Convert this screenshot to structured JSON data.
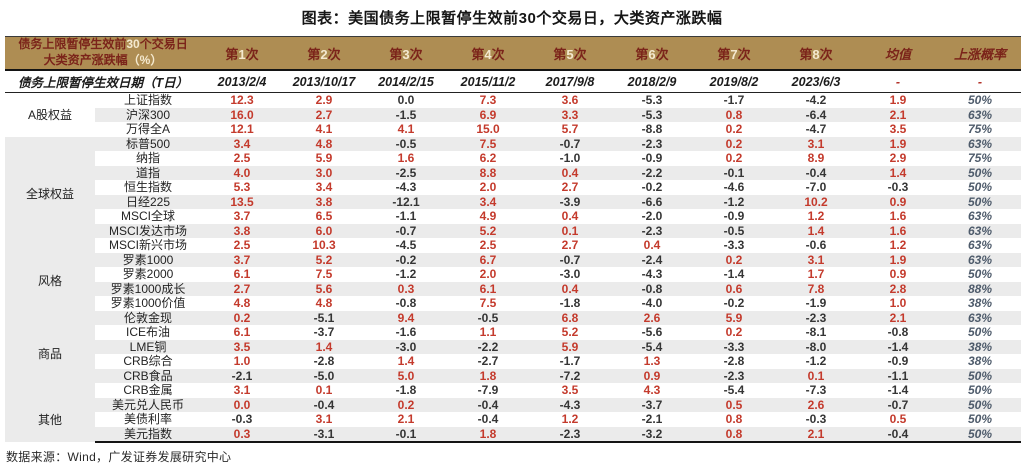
{
  "title": "图表：美国债务上限暂停生效前30个交易日，大类资产涨跌幅",
  "footer": "数据来源：Wind，广发证券发展研究中心",
  "colors": {
    "header_gold": "#ae8d53",
    "header_text_dark_red": "#7b241a",
    "header_digit_cream": "#f4e9cf",
    "positive_red": "#c43a2c",
    "negative_black": "#353535",
    "probability_slate": "#4e5b6b",
    "stripe_gray": "#ebebeb"
  },
  "header": {
    "corner_line1_pre": "债务上限暂停生效前",
    "corner_line1_num": "30",
    "corner_line1_post": "个交易日",
    "corner_line2": "大类资产涨跌幅",
    "corner_line2_unit": "（%）",
    "occurrence_cols": [
      {
        "pre": "第",
        "num": "1",
        "suf": "次"
      },
      {
        "pre": "第",
        "num": "2",
        "suf": "次"
      },
      {
        "pre": "第",
        "num": "3",
        "suf": "次"
      },
      {
        "pre": "第",
        "num": "4",
        "suf": "次"
      },
      {
        "pre": "第",
        "num": "5",
        "suf": "次"
      },
      {
        "pre": "第",
        "num": "6",
        "suf": "次"
      },
      {
        "pre": "第",
        "num": "7",
        "suf": "次"
      },
      {
        "pre": "第",
        "num": "8",
        "suf": "次"
      }
    ],
    "mean_label": "均值",
    "prob_label": "上涨概率"
  },
  "date_row": {
    "label": "债务上限暂停生效日期（T日）",
    "dates": [
      "2013/2/4",
      "2013/10/17",
      "2014/2/15",
      "2015/11/2",
      "2017/9/8",
      "2018/2/9",
      "2019/8/2",
      "2023/6/3"
    ],
    "mean": "-",
    "prob": "-"
  },
  "groups": [
    {
      "category": "A股权益",
      "shade": false,
      "rows": [
        {
          "name": "上证指数",
          "values": [
            "12.3",
            "2.9",
            "0.0",
            "7.3",
            "3.6",
            "-5.3",
            "-1.7",
            "-4.2"
          ],
          "mean": "1.9",
          "prob": "50%"
        },
        {
          "name": "沪深300",
          "values": [
            "16.0",
            "2.7",
            "-1.5",
            "6.9",
            "3.3",
            "-5.3",
            "0.8",
            "-6.4"
          ],
          "mean": "2.1",
          "prob": "63%"
        },
        {
          "name": "万得全A",
          "values": [
            "12.1",
            "4.1",
            "4.1",
            "15.0",
            "5.7",
            "-8.8",
            "0.2",
            "-4.7"
          ],
          "mean": "3.5",
          "prob": "75%"
        }
      ]
    },
    {
      "category": "全球权益",
      "shade": true,
      "rows": [
        {
          "name": "标普500",
          "values": [
            "3.4",
            "4.8",
            "-0.5",
            "7.5",
            "-0.7",
            "-2.3",
            "0.2",
            "3.1"
          ],
          "mean": "1.9",
          "prob": "63%"
        },
        {
          "name": "纳指",
          "values": [
            "2.5",
            "5.9",
            "1.6",
            "6.2",
            "-1.0",
            "-0.9",
            "0.2",
            "8.9"
          ],
          "mean": "2.9",
          "prob": "75%"
        },
        {
          "name": "道指",
          "values": [
            "4.0",
            "3.0",
            "-2.5",
            "8.8",
            "0.4",
            "-2.2",
            "-0.1",
            "-0.4"
          ],
          "mean": "1.4",
          "prob": "50%"
        },
        {
          "name": "恒生指数",
          "values": [
            "5.3",
            "3.4",
            "-4.3",
            "2.0",
            "2.7",
            "-0.2",
            "-4.6",
            "-7.0"
          ],
          "mean": "-0.3",
          "prob": "50%"
        },
        {
          "name": "日经225",
          "values": [
            "13.5",
            "3.8",
            "-12.1",
            "3.4",
            "-3.9",
            "-6.6",
            "-1.2",
            "10.2"
          ],
          "mean": "0.9",
          "prob": "50%"
        },
        {
          "name": "MSCI全球",
          "values": [
            "3.7",
            "6.5",
            "-1.1",
            "4.9",
            "0.4",
            "-2.0",
            "-0.9",
            "1.2"
          ],
          "mean": "1.6",
          "prob": "63%"
        },
        {
          "name": "MSCI发达市场",
          "values": [
            "3.8",
            "6.0",
            "-0.7",
            "5.2",
            "0.1",
            "-2.3",
            "-0.5",
            "1.4"
          ],
          "mean": "1.6",
          "prob": "63%"
        },
        {
          "name": "MSCI新兴市场",
          "values": [
            "2.5",
            "10.3",
            "-4.5",
            "2.5",
            "2.7",
            "0.4",
            "-3.3",
            "-0.6"
          ],
          "mean": "1.2",
          "prob": "63%"
        }
      ]
    },
    {
      "category": "风格",
      "shade": true,
      "rows": [
        {
          "name": "罗素1000",
          "values": [
            "3.7",
            "5.2",
            "-0.2",
            "6.7",
            "-0.7",
            "-2.4",
            "0.2",
            "3.1"
          ],
          "mean": "1.9",
          "prob": "63%"
        },
        {
          "name": "罗素2000",
          "values": [
            "6.1",
            "7.5",
            "-1.2",
            "2.0",
            "-3.0",
            "-4.3",
            "-1.4",
            "1.7"
          ],
          "mean": "0.9",
          "prob": "50%"
        },
        {
          "name": "罗素1000成长",
          "values": [
            "2.7",
            "5.6",
            "0.3",
            "6.1",
            "0.4",
            "-0.8",
            "0.6",
            "7.8"
          ],
          "mean": "2.8",
          "prob": "88%"
        },
        {
          "name": "罗素1000价值",
          "values": [
            "4.8",
            "4.8",
            "-0.8",
            "7.5",
            "-1.8",
            "-4.0",
            "-0.2",
            "-1.9"
          ],
          "mean": "1.0",
          "prob": "38%"
        }
      ]
    },
    {
      "category": "商品",
      "shade": true,
      "rows": [
        {
          "name": "伦敦金现",
          "values": [
            "0.2",
            "-5.1",
            "9.4",
            "-0.5",
            "6.8",
            "2.6",
            "5.9",
            "-2.3"
          ],
          "mean": "2.1",
          "prob": "63%"
        },
        {
          "name": "ICE布油",
          "values": [
            "6.1",
            "-3.7",
            "-1.6",
            "1.1",
            "5.2",
            "-5.6",
            "0.2",
            "-8.1"
          ],
          "mean": "-0.8",
          "prob": "50%"
        },
        {
          "name": "LME铜",
          "values": [
            "3.5",
            "1.4",
            "-3.0",
            "-2.2",
            "5.9",
            "-5.4",
            "-3.3",
            "-8.0"
          ],
          "mean": "-1.4",
          "prob": "38%"
        },
        {
          "name": "CRB综合",
          "values": [
            "1.0",
            "-2.8",
            "1.4",
            "-2.7",
            "-1.7",
            "1.3",
            "-2.8",
            "-1.2"
          ],
          "mean": "-0.9",
          "prob": "38%"
        },
        {
          "name": "CRB食品",
          "values": [
            "-2.1",
            "-5.0",
            "5.0",
            "1.8",
            "-7.2",
            "0.9",
            "-2.3",
            "0.1"
          ],
          "mean": "-1.1",
          "prob": "50%"
        },
        {
          "name": "CRB金属",
          "values": [
            "3.1",
            "0.1",
            "-1.8",
            "-7.9",
            "3.5",
            "4.3",
            "-5.4",
            "-7.3"
          ],
          "mean": "-1.4",
          "prob": "50%"
        }
      ]
    },
    {
      "category": "其他",
      "shade": true,
      "rows": [
        {
          "name": "美元兑人民币",
          "values": [
            "0.0",
            "-0.4",
            "0.2",
            "-0.4",
            "-4.3",
            "-3.7",
            "0.5",
            "2.6"
          ],
          "mean": "-0.7",
          "prob": "50%",
          "red_overrides": [
            0
          ]
        },
        {
          "name": "美债利率",
          "values": [
            "-0.3",
            "3.1",
            "2.1",
            "-0.4",
            "1.2",
            "-2.1",
            "0.8",
            "-0.3"
          ],
          "mean": "0.5",
          "prob": "50%"
        },
        {
          "name": "美元指数",
          "values": [
            "0.3",
            "-3.1",
            "-0.1",
            "1.8",
            "-2.3",
            "-3.2",
            "0.8",
            "2.1"
          ],
          "mean": "-0.4",
          "prob": "50%"
        }
      ]
    }
  ]
}
